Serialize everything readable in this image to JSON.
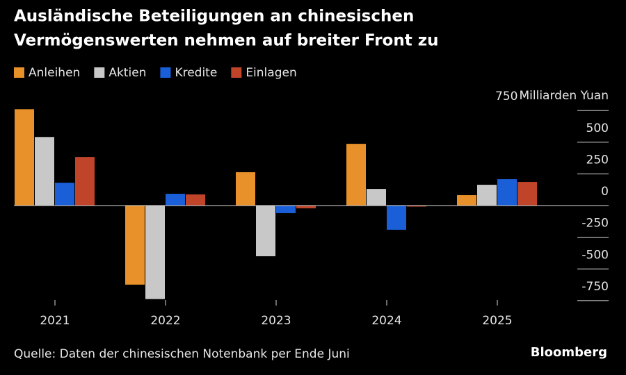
{
  "chart_data": {
    "type": "bar",
    "title": [
      "Ausländische Beteiligungen an chinesischen",
      "Vermögenswerten nehmen auf breiter Front zu"
    ],
    "y_label": "Milliarden Yuan",
    "source": "Quelle: Daten der chinesischen Notenbank per Ende Juni",
    "brand": "Bloomberg",
    "categories": [
      "2021",
      "2022",
      "2023",
      "2024",
      "2025"
    ],
    "series": [
      {
        "name": "Anleihen",
        "color": "#e8912a",
        "values": [
          760,
          -624,
          263,
          487,
          82
        ]
      },
      {
        "name": "Aktien",
        "color": "#c8c8c8",
        "values": [
          541,
          -738,
          -400,
          131,
          164
        ]
      },
      {
        "name": "Kredite",
        "color": "#1a5fd8",
        "values": [
          180,
          93,
          -60,
          -191,
          208
        ]
      },
      {
        "name": "Einlagen",
        "color": "#c0442a",
        "values": [
          383,
          88,
          -22,
          -8,
          186
        ]
      }
    ],
    "ylim": [
      -800,
      800
    ],
    "yticks": [
      -750,
      -500,
      -250,
      0,
      250,
      500,
      750
    ]
  }
}
